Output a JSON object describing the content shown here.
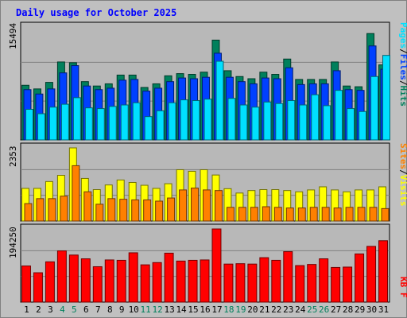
{
  "title": "Daily usage for October 2025",
  "colors": {
    "background": "#C0C0C0",
    "panel": "#B8B8B8",
    "title": "#0000FF",
    "hits": "#00805C",
    "files": "#0040FF",
    "pages": "#00E0FF",
    "visits": "#FFFF00",
    "sites": "#FF8000",
    "kbytes": "#FF0000",
    "weekend": "#00805C",
    "grid": "#808080"
  },
  "chart_data": [
    {
      "type": "bar",
      "panel": "top",
      "x": [
        "1",
        "2",
        "3",
        "4",
        "5",
        "6",
        "7",
        "8",
        "9",
        "10",
        "11",
        "12",
        "13",
        "14",
        "15",
        "16",
        "17",
        "18",
        "19",
        "20",
        "21",
        "22",
        "23",
        "24",
        "25",
        "26",
        "27",
        "28",
        "29",
        "30",
        "31"
      ],
      "weekend_days": [
        "4",
        "5",
        "11",
        "12",
        "18",
        "19",
        "25",
        "26"
      ],
      "ymax_label": "15494",
      "ylim": [
        0,
        15494
      ],
      "legend": {
        "pages": "Pages",
        "sep1": "/",
        "files": "Files",
        "sep2": "/",
        "hits": "Hits"
      },
      "series": [
        {
          "key": "hits",
          "values": [
            7500,
            7000,
            7900,
            10700,
            10600,
            8000,
            7400,
            7700,
            8900,
            8900,
            7200,
            7700,
            8800,
            9100,
            9000,
            9300,
            13700,
            9500,
            8700,
            8400,
            9300,
            9000,
            11100,
            8300,
            8300,
            8300,
            10700,
            7400,
            7300,
            14600,
            10300
          ]
        },
        {
          "key": "files",
          "values": [
            6900,
            6300,
            7000,
            9200,
            10200,
            7400,
            6900,
            7100,
            8200,
            8300,
            6700,
            7100,
            8000,
            8500,
            8400,
            8600,
            11900,
            8600,
            8000,
            7700,
            8500,
            8400,
            9900,
            7600,
            7700,
            7700,
            9500,
            6900,
            6800,
            12900,
            9700
          ]
        },
        {
          "key": "pages",
          "values": [
            4200,
            3600,
            4500,
            4900,
            5800,
            4400,
            4300,
            4600,
            4800,
            5100,
            3200,
            4000,
            5100,
            5500,
            5400,
            5600,
            10800,
            5700,
            4800,
            4500,
            5200,
            5000,
            5400,
            4800,
            6200,
            4700,
            6800,
            4300,
            3900,
            8700,
            11600
          ]
        }
      ]
    },
    {
      "type": "bar",
      "panel": "middle",
      "x": [
        "1",
        "2",
        "3",
        "4",
        "5",
        "6",
        "7",
        "8",
        "9",
        "10",
        "11",
        "12",
        "13",
        "14",
        "15",
        "16",
        "17",
        "18",
        "19",
        "20",
        "21",
        "22",
        "23",
        "24",
        "25",
        "26",
        "27",
        "28",
        "29",
        "30",
        "31"
      ],
      "ymax_label": "2353",
      "ylim": [
        0,
        2353
      ],
      "legend": {
        "sites": "Sites",
        "sep": "/",
        "visits": "Visits"
      },
      "series": [
        {
          "key": "visits",
          "values": [
            1050,
            1050,
            1270,
            1470,
            2353,
            1370,
            1010,
            1160,
            1320,
            1240,
            1150,
            1050,
            1200,
            1650,
            1600,
            1650,
            1480,
            1040,
            900,
            980,
            1010,
            1010,
            980,
            940,
            1000,
            1100,
            1000,
            940,
            1000,
            1000,
            1100
          ]
        },
        {
          "key": "sites",
          "values": [
            560,
            720,
            720,
            800,
            1780,
            940,
            540,
            720,
            700,
            680,
            680,
            640,
            740,
            1000,
            1060,
            1000,
            980,
            440,
            440,
            440,
            460,
            440,
            420,
            420,
            440,
            440,
            420,
            440,
            440,
            440,
            400
          ]
        }
      ]
    },
    {
      "type": "bar",
      "panel": "bottom",
      "x": [
        "1",
        "2",
        "3",
        "4",
        "5",
        "6",
        "7",
        "8",
        "9",
        "10",
        "11",
        "12",
        "13",
        "14",
        "15",
        "16",
        "17",
        "18",
        "19",
        "20",
        "21",
        "22",
        "23",
        "24",
        "25",
        "26",
        "27",
        "28",
        "29",
        "30",
        "31"
      ],
      "ymax_label": "194250",
      "ylim": [
        0,
        194250
      ],
      "legend": {
        "kbytes": "KB F"
      },
      "series": [
        {
          "key": "kbytes",
          "values": [
            96000,
            78000,
            107000,
            136000,
            125000,
            115000,
            94000,
            112000,
            111000,
            131000,
            99000,
            105000,
            130000,
            109000,
            111000,
            112000,
            194250,
            101000,
            102000,
            101000,
            118000,
            111000,
            134000,
            97000,
            100000,
            115000,
            92000,
            93000,
            128000,
            148000,
            163000
          ]
        }
      ]
    }
  ]
}
